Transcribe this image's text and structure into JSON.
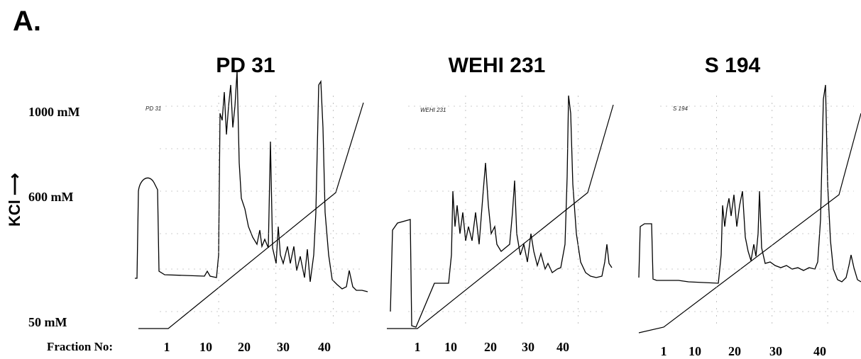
{
  "panel_label": "A.",
  "y_axis": {
    "label": "KCl",
    "ticks": [
      "1000 mM",
      "600 mM",
      "50 mM"
    ]
  },
  "x_axis_label": "Fraction No:",
  "x_tick_labels": [
    "1",
    "10",
    "20",
    "30",
    "40"
  ],
  "chart_data": [
    {
      "type": "line",
      "title": "PD 31",
      "inset_label": "PD 31",
      "x": [
        1,
        10,
        20,
        30,
        40
      ],
      "gradient_mM": [
        50,
        329,
        600,
        1000
      ],
      "gradient_fractions": [
        1,
        20,
        35,
        40
      ]
    },
    {
      "type": "line",
      "title": "WEHI 231",
      "inset_label": "WEHI 231",
      "x": [
        1,
        10,
        20,
        30,
        40
      ],
      "gradient_mM": [
        50,
        329,
        600,
        1000
      ],
      "gradient_fractions": [
        1,
        20,
        35,
        40
      ]
    },
    {
      "type": "line",
      "title": "S 194",
      "inset_label": "S 194",
      "x": [
        1,
        10,
        20,
        30,
        40
      ],
      "gradient_mM": [
        50,
        329,
        600,
        1000
      ],
      "gradient_fractions": [
        1,
        20,
        35,
        40
      ]
    }
  ],
  "colors": {
    "trace": "#000000",
    "grid": "#999999"
  }
}
